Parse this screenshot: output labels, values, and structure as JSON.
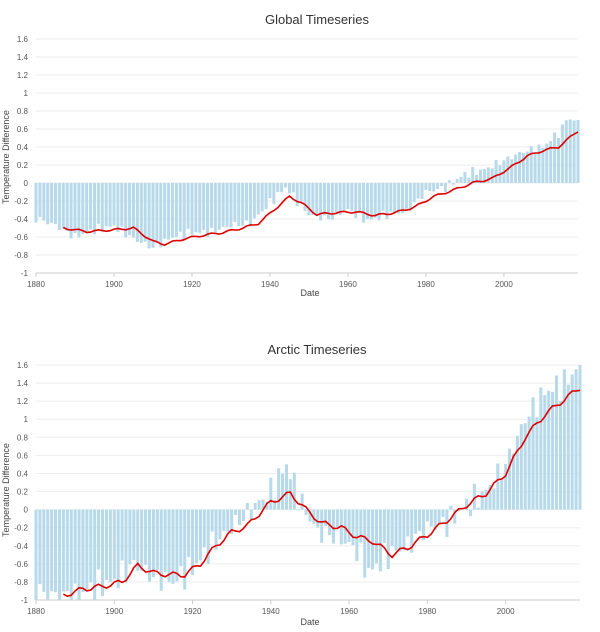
{
  "colors": {
    "bar": "#b7d9ea",
    "line": "#dd0000",
    "grid": "#eeeeee",
    "axis": "#cccccc"
  },
  "chart_data": [
    {
      "type": "bar",
      "title": "Global Timeseries",
      "xlabel": "Date",
      "ylabel": "Temperature Difference",
      "xlim": [
        1880,
        2019
      ],
      "ylim": [
        -1,
        1.6
      ],
      "yticks": [
        "1.6",
        "1.4",
        "1.2",
        "1",
        "0.8",
        "0.6",
        "0.4",
        "0.2",
        "0",
        "-0.2",
        "-0.4",
        "-0.6",
        "-0.8",
        "-1"
      ],
      "xticks": [
        "1880",
        "1900",
        "1920",
        "1940",
        "1960",
        "1980",
        "2000"
      ],
      "bar_anchors": [
        [
          1880,
          -0.39
        ],
        [
          1885,
          -0.47
        ],
        [
          1890,
          -0.6
        ],
        [
          1895,
          -0.52
        ],
        [
          1900,
          -0.48
        ],
        [
          1905,
          -0.62
        ],
        [
          1910,
          -0.72
        ],
        [
          1915,
          -0.6
        ],
        [
          1920,
          -0.55
        ],
        [
          1925,
          -0.55
        ],
        [
          1930,
          -0.47
        ],
        [
          1935,
          -0.45
        ],
        [
          1940,
          -0.22
        ],
        [
          1944,
          -0.05
        ],
        [
          1950,
          -0.35
        ],
        [
          1955,
          -0.4
        ],
        [
          1960,
          -0.3
        ],
        [
          1965,
          -0.42
        ],
        [
          1970,
          -0.35
        ],
        [
          1975,
          -0.32
        ],
        [
          1980,
          -0.1
        ],
        [
          1985,
          -0.05
        ],
        [
          1990,
          0.1
        ],
        [
          1995,
          0.15
        ],
        [
          2000,
          0.25
        ],
        [
          2005,
          0.35
        ],
        [
          2010,
          0.4
        ],
        [
          2015,
          0.6
        ],
        [
          2016,
          0.72
        ],
        [
          2019,
          0.68
        ]
      ],
      "series_anchors": [
        [
          1887,
          -0.5
        ],
        [
          1893,
          -0.54
        ],
        [
          1900,
          -0.52
        ],
        [
          1905,
          -0.5
        ],
        [
          1910,
          -0.65
        ],
        [
          1913,
          -0.68
        ],
        [
          1918,
          -0.62
        ],
        [
          1923,
          -0.58
        ],
        [
          1928,
          -0.55
        ],
        [
          1933,
          -0.5
        ],
        [
          1937,
          -0.45
        ],
        [
          1941,
          -0.3
        ],
        [
          1945,
          -0.15
        ],
        [
          1948,
          -0.22
        ],
        [
          1952,
          -0.35
        ],
        [
          1957,
          -0.33
        ],
        [
          1962,
          -0.32
        ],
        [
          1967,
          -0.36
        ],
        [
          1972,
          -0.33
        ],
        [
          1977,
          -0.27
        ],
        [
          1982,
          -0.15
        ],
        [
          1987,
          -0.08
        ],
        [
          1992,
          0.0
        ],
        [
          1997,
          0.05
        ],
        [
          2002,
          0.18
        ],
        [
          2006,
          0.3
        ],
        [
          2010,
          0.36
        ],
        [
          2014,
          0.4
        ],
        [
          2019,
          0.58
        ]
      ]
    },
    {
      "type": "bar",
      "title": "Arctic Timeseries",
      "xlabel": "Date",
      "ylabel": "Temperature Difference",
      "xlim": [
        1880,
        2019
      ],
      "ylim": [
        -1,
        1.6
      ],
      "yticks": [
        "1.6",
        "1.4",
        "1.2",
        "1",
        "0.8",
        "0.6",
        "0.4",
        "0.2",
        "0",
        "-0.2",
        "-0.4",
        "-0.6",
        "-0.8",
        "-1"
      ],
      "xticks": [
        "1880",
        "1900",
        "1920",
        "1940",
        "1960",
        "1980",
        "2000"
      ],
      "bar_anchors": [
        [
          1880,
          -0.9
        ],
        [
          1885,
          -0.95
        ],
        [
          1890,
          -0.95
        ],
        [
          1895,
          -0.85
        ],
        [
          1900,
          -0.8
        ],
        [
          1905,
          -0.6
        ],
        [
          1910,
          -0.75
        ],
        [
          1915,
          -0.8
        ],
        [
          1920,
          -0.65
        ],
        [
          1925,
          -0.4
        ],
        [
          1930,
          -0.2
        ],
        [
          1935,
          0.0
        ],
        [
          1940,
          0.2
        ],
        [
          1944,
          0.5
        ],
        [
          1948,
          0.05
        ],
        [
          1952,
          -0.25
        ],
        [
          1957,
          -0.3
        ],
        [
          1962,
          -0.45
        ],
        [
          1965,
          -0.7
        ],
        [
          1970,
          -0.5
        ],
        [
          1975,
          -0.4
        ],
        [
          1980,
          -0.2
        ],
        [
          1985,
          -0.15
        ],
        [
          1990,
          0.05
        ],
        [
          1995,
          0.2
        ],
        [
          2000,
          0.5
        ],
        [
          2005,
          1.0
        ],
        [
          2010,
          1.3
        ],
        [
          2015,
          1.4
        ],
        [
          2019,
          1.6
        ]
      ],
      "series_anchors": [
        [
          1887,
          -0.95
        ],
        [
          1892,
          -0.88
        ],
        [
          1897,
          -0.85
        ],
        [
          1902,
          -0.8
        ],
        [
          1906,
          -0.62
        ],
        [
          1910,
          -0.7
        ],
        [
          1914,
          -0.72
        ],
        [
          1918,
          -0.72
        ],
        [
          1922,
          -0.6
        ],
        [
          1926,
          -0.4
        ],
        [
          1930,
          -0.25
        ],
        [
          1934,
          -0.18
        ],
        [
          1938,
          0.0
        ],
        [
          1940,
          0.08
        ],
        [
          1945,
          0.18
        ],
        [
          1949,
          0.0
        ],
        [
          1953,
          -0.15
        ],
        [
          1958,
          -0.2
        ],
        [
          1962,
          -0.3
        ],
        [
          1966,
          -0.35
        ],
        [
          1971,
          -0.5
        ],
        [
          1975,
          -0.42
        ],
        [
          1980,
          -0.28
        ],
        [
          1985,
          -0.12
        ],
        [
          1990,
          0.05
        ],
        [
          1995,
          0.18
        ],
        [
          2000,
          0.4
        ],
        [
          2005,
          0.8
        ],
        [
          2010,
          1.05
        ],
        [
          2015,
          1.22
        ],
        [
          2019,
          1.35
        ]
      ]
    }
  ]
}
